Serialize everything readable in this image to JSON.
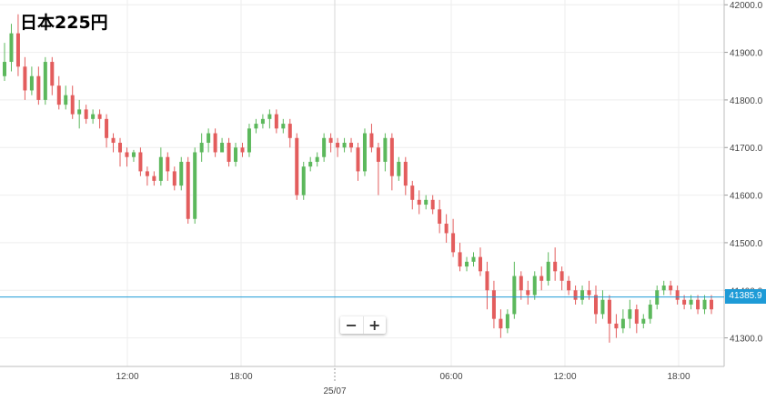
{
  "title": "日本225円",
  "current_price_label": "41385.9",
  "zoom": {
    "minus": "−",
    "plus": "+"
  },
  "colors": {
    "up": "#5cb85c",
    "down": "#e35d5d",
    "doji": "#222222",
    "price_line": "#1e9bd7",
    "grid": "#eeeeee"
  },
  "chart_data": {
    "type": "candlestick",
    "title": "日本225円",
    "ylim": [
      41240,
      42010
    ],
    "current_price": 41385.9,
    "y_ticks": [
      "41300.0",
      "41400.0",
      "41500.0",
      "41600.0",
      "41700.0",
      "41800.0",
      "41900.0",
      "42000.0"
    ],
    "x_ticks": [
      "12:00",
      "18:00",
      "25/07",
      "06:00",
      "12:00",
      "18:00"
    ],
    "candles": [
      [
        41850,
        41880,
        41840,
        41920
      ],
      [
        41880,
        41940,
        41860,
        41960
      ],
      [
        41940,
        41870,
        41850,
        41980
      ],
      [
        41870,
        41820,
        41800,
        41890
      ],
      [
        41820,
        41850,
        41810,
        41870
      ],
      [
        41850,
        41800,
        41790,
        41870
      ],
      [
        41800,
        41880,
        41790,
        41890
      ],
      [
        41880,
        41830,
        41810,
        41890
      ],
      [
        41830,
        41790,
        41780,
        41850
      ],
      [
        41790,
        41810,
        41780,
        41830
      ],
      [
        41810,
        41770,
        41760,
        41830
      ],
      [
        41770,
        41780,
        41740,
        41800
      ],
      [
        41780,
        41760,
        41750,
        41790
      ],
      [
        41760,
        41770,
        41750,
        41780
      ],
      [
        41770,
        41760,
        41740,
        41780
      ],
      [
        41760,
        41720,
        41700,
        41770
      ],
      [
        41720,
        41710,
        41690,
        41730
      ],
      [
        41710,
        41690,
        41660,
        41720
      ],
      [
        41690,
        41680,
        41660,
        41700
      ],
      [
        41680,
        41690,
        41670,
        41695
      ],
      [
        41690,
        41650,
        41640,
        41700
      ],
      [
        41650,
        41640,
        41620,
        41660
      ],
      [
        41640,
        41630,
        41620,
        41650
      ],
      [
        41630,
        41680,
        41620,
        41700
      ],
      [
        41680,
        41650,
        41630,
        41690
      ],
      [
        41650,
        41620,
        41610,
        41660
      ],
      [
        41620,
        41670,
        41610,
        41680
      ],
      [
        41670,
        41550,
        41540,
        41680
      ],
      [
        41550,
        41690,
        41540,
        41700
      ],
      [
        41690,
        41710,
        41670,
        41730
      ],
      [
        41710,
        41730,
        41690,
        41740
      ],
      [
        41730,
        41690,
        41680,
        41740
      ],
      [
        41690,
        41710,
        41690,
        41720
      ],
      [
        41710,
        41670,
        41660,
        41720
      ],
      [
        41670,
        41700,
        41660,
        41710
      ],
      [
        41700,
        41690,
        41680,
        41710
      ],
      [
        41690,
        41740,
        41680,
        41750
      ],
      [
        41740,
        41750,
        41730,
        41760
      ],
      [
        41750,
        41760,
        41740,
        41770
      ],
      [
        41760,
        41770,
        41740,
        41780
      ],
      [
        41770,
        41740,
        41730,
        41780
      ],
      [
        41740,
        41750,
        41730,
        41760
      ],
      [
        41750,
        41720,
        41700,
        41760
      ],
      [
        41720,
        41600,
        41590,
        41730
      ],
      [
        41600,
        41660,
        41590,
        41670
      ],
      [
        41660,
        41670,
        41650,
        41680
      ],
      [
        41670,
        41680,
        41660,
        41690
      ],
      [
        41680,
        41720,
        41670,
        41730
      ],
      [
        41720,
        41710,
        41690,
        41730
      ],
      [
        41710,
        41700,
        41680,
        41720
      ],
      [
        41700,
        41710,
        41690,
        41720
      ],
      [
        41710,
        41700,
        41690,
        41720
      ],
      [
        41700,
        41650,
        41630,
        41710
      ],
      [
        41650,
        41730,
        41640,
        41740
      ],
      [
        41730,
        41700,
        41690,
        41750
      ],
      [
        41700,
        41670,
        41600,
        41710
      ],
      [
        41670,
        41720,
        41650,
        41730
      ],
      [
        41720,
        41640,
        41610,
        41730
      ],
      [
        41640,
        41670,
        41630,
        41680
      ],
      [
        41670,
        41620,
        41600,
        41680
      ],
      [
        41620,
        41590,
        41570,
        41630
      ],
      [
        41590,
        41580,
        41560,
        41610
      ],
      [
        41580,
        41590,
        41570,
        41600
      ],
      [
        41590,
        41570,
        41560,
        41600
      ],
      [
        41570,
        41540,
        41520,
        41590
      ],
      [
        41540,
        41520,
        41500,
        41560
      ],
      [
        41520,
        41480,
        41470,
        41550
      ],
      [
        41480,
        41450,
        41440,
        41500
      ],
      [
        41450,
        41460,
        41440,
        41470
      ],
      [
        41460,
        41470,
        41450,
        41480
      ],
      [
        41470,
        41440,
        41430,
        41490
      ],
      [
        41440,
        41400,
        41360,
        41460
      ],
      [
        41400,
        41340,
        41320,
        41420
      ],
      [
        41340,
        41320,
        41300,
        41360
      ],
      [
        41320,
        41350,
        41310,
        41360
      ],
      [
        41350,
        41430,
        41340,
        41460
      ],
      [
        41430,
        41400,
        41380,
        41440
      ],
      [
        41400,
        41390,
        41370,
        41420
      ],
      [
        41390,
        41430,
        41380,
        41440
      ],
      [
        41430,
        41420,
        41400,
        41450
      ],
      [
        41420,
        41460,
        41410,
        41480
      ],
      [
        41460,
        41440,
        41420,
        41490
      ],
      [
        41440,
        41420,
        41400,
        41450
      ],
      [
        41420,
        41400,
        41390,
        41430
      ],
      [
        41400,
        41380,
        41370,
        41410
      ],
      [
        41380,
        41400,
        41370,
        41410
      ],
      [
        41400,
        41390,
        41380,
        41420
      ],
      [
        41390,
        41350,
        41330,
        41410
      ],
      [
        41350,
        41380,
        41340,
        41400
      ],
      [
        41380,
        41330,
        41290,
        41390
      ],
      [
        41330,
        41320,
        41300,
        41350
      ],
      [
        41320,
        41340,
        41310,
        41360
      ],
      [
        41340,
        41360,
        41320,
        41380
      ],
      [
        41360,
        41330,
        41310,
        41370
      ],
      [
        41330,
        41340,
        41320,
        41350
      ],
      [
        41340,
        41370,
        41330,
        41380
      ],
      [
        41370,
        41400,
        41360,
        41410
      ],
      [
        41400,
        41410,
        41390,
        41420
      ],
      [
        41410,
        41400,
        41390,
        41420
      ],
      [
        41400,
        41380,
        41370,
        41410
      ],
      [
        41380,
        41370,
        41360,
        41390
      ],
      [
        41370,
        41380,
        41360,
        41390
      ],
      [
        41380,
        41360,
        41350,
        41390
      ],
      [
        41360,
        41380,
        41350,
        41390
      ],
      [
        41380,
        41360,
        41350,
        41390
      ]
    ]
  }
}
